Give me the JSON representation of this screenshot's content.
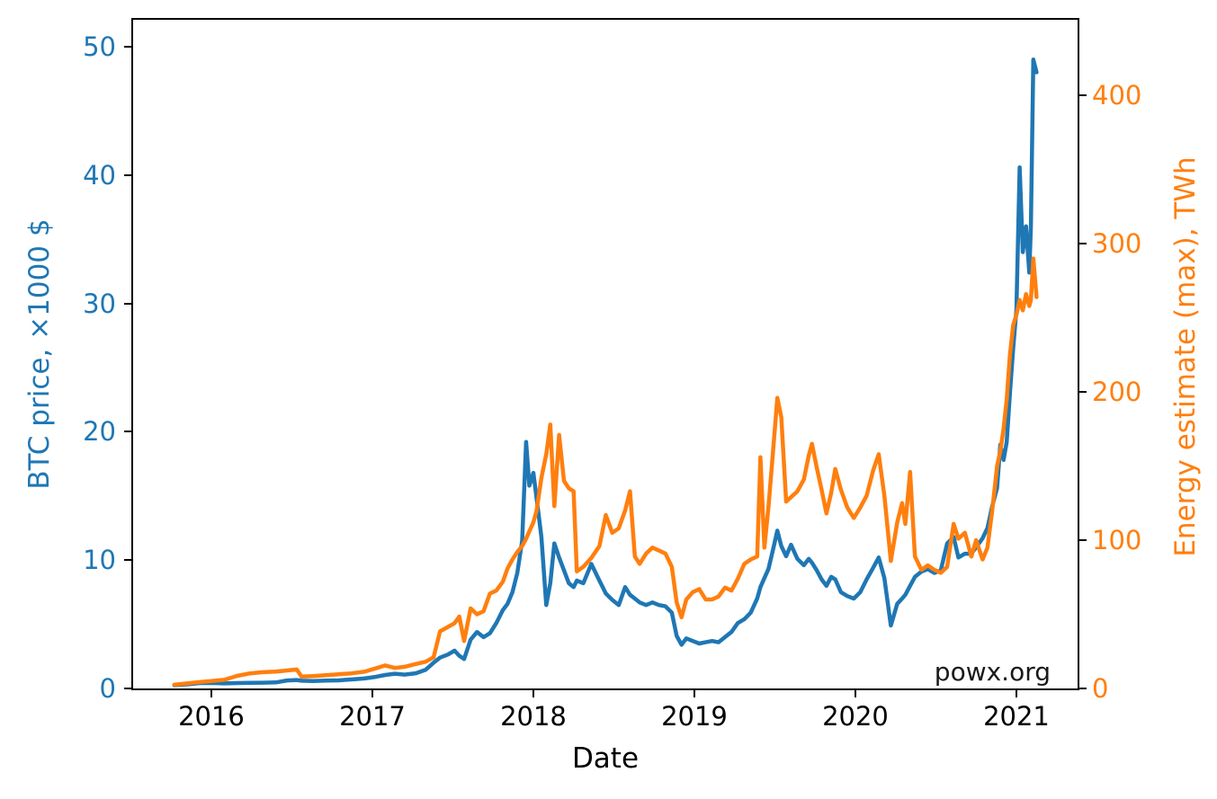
{
  "figure": {
    "annotation": "powx.org",
    "annotation_color": "#1a1a1a",
    "background": "#ffffff",
    "spine_color": "#000000"
  },
  "chart_data": {
    "type": "line",
    "title": "",
    "xlabel": "Date",
    "grid": false,
    "legend": "none",
    "axes": {
      "x": {
        "ticks": [
          2016,
          2017,
          2018,
          2019,
          2020,
          2021
        ],
        "lim": [
          2015.514,
          2021.38
        ],
        "color": "#000000"
      },
      "left": {
        "label": "BTC price, ×1000 $",
        "color": "#1f77b4",
        "ticks": [
          0,
          10,
          20,
          30,
          40,
          50
        ],
        "lim": [
          0,
          52.1
        ]
      },
      "right": {
        "label": "Energy estimate (max), TWh",
        "color": "#ff7f0e",
        "ticks": [
          0,
          100,
          200,
          300,
          400
        ],
        "lim": [
          0,
          451
        ]
      }
    },
    "series": [
      {
        "key": "btc_price",
        "name": "BTC price, ×1000 $",
        "axis": "left",
        "color": "#1f77b4",
        "points": [
          [
            2015.77,
            0.25
          ],
          [
            2015.85,
            0.32
          ],
          [
            2015.93,
            0.42
          ],
          [
            2016.0,
            0.43
          ],
          [
            2016.08,
            0.39
          ],
          [
            2016.16,
            0.42
          ],
          [
            2016.24,
            0.44
          ],
          [
            2016.32,
            0.45
          ],
          [
            2016.4,
            0.47
          ],
          [
            2016.47,
            0.62
          ],
          [
            2016.53,
            0.66
          ],
          [
            2016.56,
            0.6
          ],
          [
            2016.63,
            0.58
          ],
          [
            2016.71,
            0.61
          ],
          [
            2016.79,
            0.63
          ],
          [
            2016.87,
            0.7
          ],
          [
            2016.95,
            0.78
          ],
          [
            2017.02,
            0.9
          ],
          [
            2017.08,
            1.05
          ],
          [
            2017.14,
            1.15
          ],
          [
            2017.2,
            1.08
          ],
          [
            2017.27,
            1.18
          ],
          [
            2017.33,
            1.45
          ],
          [
            2017.38,
            2.0
          ],
          [
            2017.42,
            2.4
          ],
          [
            2017.47,
            2.65
          ],
          [
            2017.51,
            2.95
          ],
          [
            2017.54,
            2.55
          ],
          [
            2017.57,
            2.3
          ],
          [
            2017.61,
            3.8
          ],
          [
            2017.65,
            4.4
          ],
          [
            2017.69,
            4.0
          ],
          [
            2017.73,
            4.3
          ],
          [
            2017.77,
            5.1
          ],
          [
            2017.81,
            6.1
          ],
          [
            2017.84,
            6.6
          ],
          [
            2017.87,
            7.5
          ],
          [
            2017.9,
            9.0
          ],
          [
            2017.93,
            11.5
          ],
          [
            2017.955,
            19.2
          ],
          [
            2017.975,
            15.8
          ],
          [
            2018.0,
            16.8
          ],
          [
            2018.02,
            14.8
          ],
          [
            2018.05,
            11.8
          ],
          [
            2018.08,
            6.5
          ],
          [
            2018.105,
            8.2
          ],
          [
            2018.13,
            11.3
          ],
          [
            2018.16,
            10.2
          ],
          [
            2018.19,
            9.2
          ],
          [
            2018.22,
            8.2
          ],
          [
            2018.25,
            7.9
          ],
          [
            2018.27,
            8.4
          ],
          [
            2018.31,
            8.2
          ],
          [
            2018.36,
            9.7
          ],
          [
            2018.41,
            8.4
          ],
          [
            2018.45,
            7.4
          ],
          [
            2018.49,
            6.9
          ],
          [
            2018.53,
            6.5
          ],
          [
            2018.57,
            7.9
          ],
          [
            2018.6,
            7.3
          ],
          [
            2018.63,
            7.0
          ],
          [
            2018.66,
            6.7
          ],
          [
            2018.7,
            6.5
          ],
          [
            2018.74,
            6.7
          ],
          [
            2018.78,
            6.5
          ],
          [
            2018.82,
            6.4
          ],
          [
            2018.86,
            5.9
          ],
          [
            2018.89,
            4.1
          ],
          [
            2018.92,
            3.4
          ],
          [
            2018.95,
            3.9
          ],
          [
            2018.99,
            3.7
          ],
          [
            2019.03,
            3.5
          ],
          [
            2019.07,
            3.6
          ],
          [
            2019.11,
            3.7
          ],
          [
            2019.15,
            3.6
          ],
          [
            2019.19,
            4.0
          ],
          [
            2019.23,
            4.4
          ],
          [
            2019.27,
            5.1
          ],
          [
            2019.31,
            5.4
          ],
          [
            2019.35,
            5.9
          ],
          [
            2019.39,
            7.0
          ],
          [
            2019.41,
            7.9
          ],
          [
            2019.435,
            8.6
          ],
          [
            2019.46,
            9.3
          ],
          [
            2019.49,
            10.9
          ],
          [
            2019.515,
            12.3
          ],
          [
            2019.54,
            11.1
          ],
          [
            2019.57,
            10.3
          ],
          [
            2019.6,
            11.2
          ],
          [
            2019.64,
            10.1
          ],
          [
            2019.68,
            9.6
          ],
          [
            2019.71,
            10.1
          ],
          [
            2019.73,
            9.8
          ],
          [
            2019.76,
            9.2
          ],
          [
            2019.79,
            8.5
          ],
          [
            2019.82,
            8.0
          ],
          [
            2019.85,
            8.7
          ],
          [
            2019.875,
            8.5
          ],
          [
            2019.91,
            7.5
          ],
          [
            2019.95,
            7.2
          ],
          [
            2019.99,
            7.0
          ],
          [
            2020.03,
            7.5
          ],
          [
            2020.07,
            8.5
          ],
          [
            2020.11,
            9.4
          ],
          [
            2020.145,
            10.2
          ],
          [
            2020.18,
            8.6
          ],
          [
            2020.22,
            4.9
          ],
          [
            2020.26,
            6.6
          ],
          [
            2020.29,
            7.0
          ],
          [
            2020.31,
            7.3
          ],
          [
            2020.34,
            8.0
          ],
          [
            2020.37,
            8.7
          ],
          [
            2020.41,
            9.1
          ],
          [
            2020.45,
            9.3
          ],
          [
            2020.49,
            9.0
          ],
          [
            2020.53,
            9.2
          ],
          [
            2020.57,
            11.3
          ],
          [
            2020.61,
            11.8
          ],
          [
            2020.64,
            10.2
          ],
          [
            2020.68,
            10.5
          ],
          [
            2020.72,
            10.5
          ],
          [
            2020.75,
            11.0
          ],
          [
            2020.79,
            11.7
          ],
          [
            2020.82,
            12.5
          ],
          [
            2020.85,
            14.2
          ],
          [
            2020.88,
            15.6
          ],
          [
            2020.9,
            19.0
          ],
          [
            2020.92,
            17.8
          ],
          [
            2020.94,
            19.2
          ],
          [
            2020.96,
            23.0
          ],
          [
            2020.98,
            26.5
          ],
          [
            2021.0,
            29.5
          ],
          [
            2021.02,
            40.6
          ],
          [
            2021.04,
            34.0
          ],
          [
            2021.06,
            36.0
          ],
          [
            2021.08,
            32.4
          ],
          [
            2021.09,
            36.0
          ],
          [
            2021.105,
            49.0
          ],
          [
            2021.125,
            48.0
          ]
        ]
      },
      {
        "key": "energy",
        "name": "Energy estimate (max), TWh",
        "axis": "right",
        "color": "#ff7f0e",
        "points": [
          [
            2015.77,
            2.5
          ],
          [
            2015.85,
            3.4
          ],
          [
            2015.93,
            4.3
          ],
          [
            2016.0,
            5.0
          ],
          [
            2016.08,
            5.8
          ],
          [
            2016.16,
            8.5
          ],
          [
            2016.24,
            10.2
          ],
          [
            2016.32,
            11.0
          ],
          [
            2016.4,
            11.4
          ],
          [
            2016.47,
            12.1
          ],
          [
            2016.53,
            12.8
          ],
          [
            2016.56,
            8.0
          ],
          [
            2016.63,
            8.3
          ],
          [
            2016.71,
            8.9
          ],
          [
            2016.79,
            9.6
          ],
          [
            2016.87,
            10.2
          ],
          [
            2016.95,
            11.3
          ],
          [
            2017.02,
            13.5
          ],
          [
            2017.08,
            15.5
          ],
          [
            2017.14,
            13.8
          ],
          [
            2017.2,
            14.6
          ],
          [
            2017.27,
            16.5
          ],
          [
            2017.33,
            18.0
          ],
          [
            2017.38,
            21.0
          ],
          [
            2017.42,
            38.5
          ],
          [
            2017.47,
            41.5
          ],
          [
            2017.51,
            44.0
          ],
          [
            2017.54,
            48.5
          ],
          [
            2017.57,
            32.0
          ],
          [
            2017.61,
            54.0
          ],
          [
            2017.65,
            50.0
          ],
          [
            2017.69,
            52.0
          ],
          [
            2017.73,
            64.0
          ],
          [
            2017.77,
            66.0
          ],
          [
            2017.81,
            72.0
          ],
          [
            2017.84,
            81.0
          ],
          [
            2017.87,
            87.0
          ],
          [
            2017.9,
            92.0
          ],
          [
            2017.93,
            96.0
          ],
          [
            2017.955,
            101.0
          ],
          [
            2017.975,
            106.0
          ],
          [
            2018.0,
            112.0
          ],
          [
            2018.02,
            120.0
          ],
          [
            2018.05,
            142.0
          ],
          [
            2018.08,
            158.0
          ],
          [
            2018.105,
            178.0
          ],
          [
            2018.13,
            123.0
          ],
          [
            2018.16,
            171.0
          ],
          [
            2018.19,
            140.0
          ],
          [
            2018.22,
            135.0
          ],
          [
            2018.25,
            133.0
          ],
          [
            2018.27,
            79.0
          ],
          [
            2018.31,
            82.0
          ],
          [
            2018.36,
            88.0
          ],
          [
            2018.41,
            96.0
          ],
          [
            2018.45,
            117.0
          ],
          [
            2018.49,
            105.0
          ],
          [
            2018.53,
            108.0
          ],
          [
            2018.57,
            120.0
          ],
          [
            2018.6,
            133.0
          ],
          [
            2018.63,
            89.0
          ],
          [
            2018.66,
            84.0
          ],
          [
            2018.7,
            91.0
          ],
          [
            2018.74,
            95.0
          ],
          [
            2018.78,
            93.0
          ],
          [
            2018.82,
            91.0
          ],
          [
            2018.86,
            82.0
          ],
          [
            2018.89,
            58.0
          ],
          [
            2018.92,
            48.0
          ],
          [
            2018.95,
            60.0
          ],
          [
            2018.99,
            65.0
          ],
          [
            2019.03,
            67.0
          ],
          [
            2019.07,
            60.0
          ],
          [
            2019.11,
            60.0
          ],
          [
            2019.15,
            62.0
          ],
          [
            2019.19,
            68.0
          ],
          [
            2019.23,
            66.0
          ],
          [
            2019.27,
            74.0
          ],
          [
            2019.31,
            84.0
          ],
          [
            2019.35,
            87.0
          ],
          [
            2019.39,
            89.0
          ],
          [
            2019.41,
            156.0
          ],
          [
            2019.435,
            95.0
          ],
          [
            2019.46,
            122.0
          ],
          [
            2019.49,
            162.0
          ],
          [
            2019.515,
            196.0
          ],
          [
            2019.54,
            183.0
          ],
          [
            2019.57,
            126.0
          ],
          [
            2019.6,
            129.0
          ],
          [
            2019.64,
            133.0
          ],
          [
            2019.68,
            141.0
          ],
          [
            2019.71,
            157.0
          ],
          [
            2019.73,
            165.0
          ],
          [
            2019.76,
            149.0
          ],
          [
            2019.79,
            134.0
          ],
          [
            2019.82,
            118.0
          ],
          [
            2019.85,
            132.0
          ],
          [
            2019.875,
            148.0
          ],
          [
            2019.91,
            134.0
          ],
          [
            2019.95,
            122.0
          ],
          [
            2019.99,
            115.0
          ],
          [
            2020.03,
            122.0
          ],
          [
            2020.07,
            130.0
          ],
          [
            2020.11,
            147.0
          ],
          [
            2020.145,
            158.0
          ],
          [
            2020.18,
            130.0
          ],
          [
            2020.22,
            86.0
          ],
          [
            2020.26,
            112.0
          ],
          [
            2020.29,
            125.0
          ],
          [
            2020.31,
            111.0
          ],
          [
            2020.34,
            146.0
          ],
          [
            2020.37,
            89.0
          ],
          [
            2020.41,
            80.0
          ],
          [
            2020.45,
            83.0
          ],
          [
            2020.49,
            80.0
          ],
          [
            2020.53,
            78.0
          ],
          [
            2020.57,
            82.0
          ],
          [
            2020.61,
            111.0
          ],
          [
            2020.64,
            101.0
          ],
          [
            2020.68,
            105.0
          ],
          [
            2020.72,
            89.0
          ],
          [
            2020.75,
            100.0
          ],
          [
            2020.79,
            87.0
          ],
          [
            2020.82,
            95.0
          ],
          [
            2020.85,
            120.0
          ],
          [
            2020.88,
            150.0
          ],
          [
            2020.9,
            160.0
          ],
          [
            2020.92,
            175.0
          ],
          [
            2020.94,
            195.0
          ],
          [
            2020.96,
            225.0
          ],
          [
            2020.98,
            245.0
          ],
          [
            2021.0,
            252.0
          ],
          [
            2021.02,
            262.0
          ],
          [
            2021.04,
            255.0
          ],
          [
            2021.06,
            266.0
          ],
          [
            2021.08,
            258.0
          ],
          [
            2021.09,
            262.0
          ],
          [
            2021.105,
            290.0
          ],
          [
            2021.125,
            264.0
          ]
        ]
      }
    ]
  }
}
